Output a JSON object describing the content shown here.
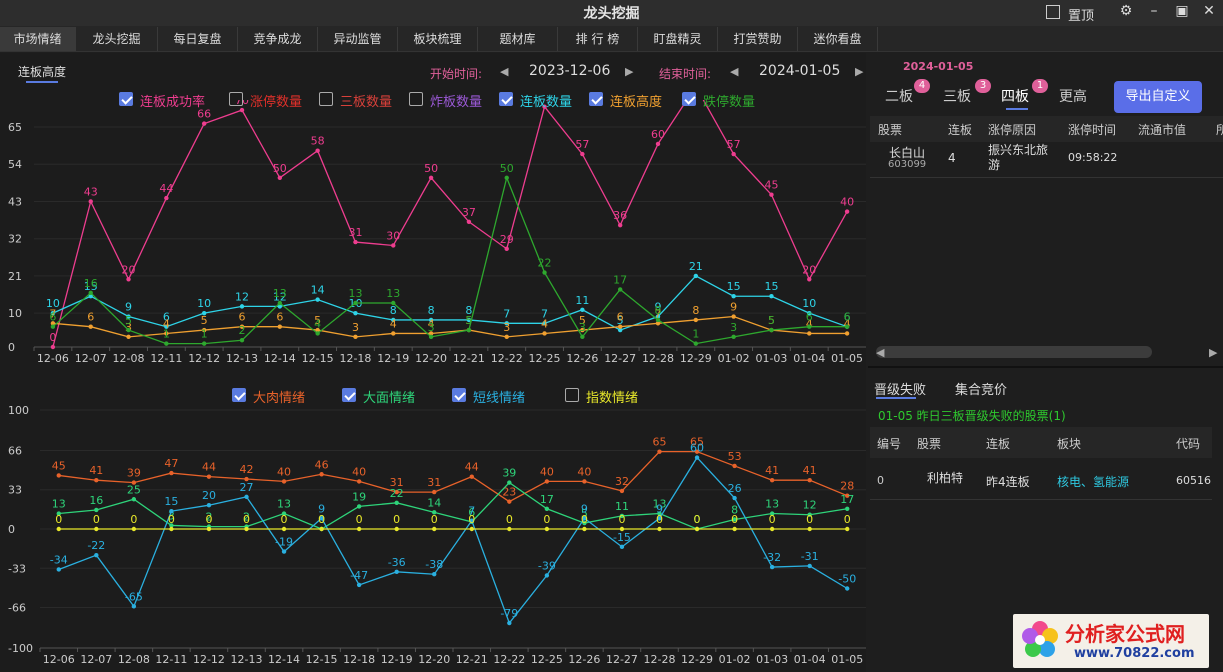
{
  "window": {
    "title": "龙头挖掘",
    "pin_label": "置顶",
    "icons": [
      "gear-icon",
      "minimize-icon",
      "maximize-icon",
      "close-icon"
    ]
  },
  "nav": {
    "tabs": [
      "市场情绪",
      "龙头挖掘",
      "每日复盘",
      "竞争成龙",
      "异动监管",
      "板块梳理",
      "题材库",
      "排 行 榜",
      "盯盘精灵",
      "打赏赞助",
      "迷你看盘"
    ]
  },
  "toolbar": {
    "subtab": "连板高度",
    "start_label": "开始时间:",
    "start_date": "2023-12-06",
    "end_label": "结束时间:",
    "end_date": "2024-01-05"
  },
  "chart_data": [
    {
      "type": "line",
      "legend": [
        "连板成功率",
        "涨停数量",
        "三板数量",
        "炸板数量",
        "连板数量",
        "连板高度",
        "跌停数量"
      ],
      "legend_checked": [
        true,
        false,
        false,
        false,
        true,
        true,
        true
      ],
      "colors": [
        "#ee3d8f",
        "#e0302a",
        "#d8403a",
        "#9b59d6",
        "#2ed4e8",
        "#f0a030",
        "#2ea82e"
      ],
      "categories": [
        "12-06",
        "12-07",
        "12-08",
        "12-11",
        "12-12",
        "12-13",
        "12-14",
        "12-15",
        "12-18",
        "12-19",
        "12-20",
        "12-21",
        "12-22",
        "12-25",
        "12-26",
        "12-27",
        "12-28",
        "12-29",
        "01-02",
        "01-03",
        "01-04",
        "01-05"
      ],
      "yticks": [
        0,
        10,
        21,
        32,
        43,
        54,
        65
      ],
      "ylim": [
        0,
        65
      ],
      "series": [
        {
          "name": "连板成功率",
          "values": [
            0,
            43,
            20,
            44,
            66,
            70,
            50,
            58,
            31,
            30,
            50,
            37,
            29,
            71,
            57,
            36,
            60,
            77,
            57,
            45,
            20,
            40
          ]
        },
        {
          "name": "连板数量",
          "values": [
            10,
            15,
            9,
            6,
            10,
            12,
            12,
            14,
            10,
            8,
            8,
            8,
            7,
            7,
            11,
            5,
            9,
            21,
            15,
            15,
            10,
            6
          ]
        },
        {
          "name": "连板高度",
          "values": [
            7,
            6,
            3,
            4,
            5,
            6,
            6,
            5,
            3,
            4,
            4,
            5,
            3,
            4,
            5,
            6,
            7,
            8,
            9,
            5,
            4,
            4
          ]
        },
        {
          "name": "跌停数量",
          "values": [
            6,
            16,
            5,
            1,
            1,
            2,
            13,
            4,
            13,
            13,
            3,
            5,
            50,
            22,
            3,
            17,
            8,
            1,
            3,
            5,
            6,
            6
          ]
        }
      ]
    },
    {
      "type": "line",
      "legend": [
        "大肉情绪",
        "大面情绪",
        "短线情绪",
        "指数情绪"
      ],
      "legend_checked": [
        true,
        true,
        true,
        false
      ],
      "colors": [
        "#e8622a",
        "#2ed47a",
        "#2ab0e0",
        "#e8e82a"
      ],
      "categories": [
        "12-06",
        "12-07",
        "12-08",
        "12-11",
        "12-12",
        "12-13",
        "12-14",
        "12-15",
        "12-18",
        "12-19",
        "12-20",
        "12-21",
        "12-22",
        "12-25",
        "12-26",
        "12-27",
        "12-28",
        "12-29",
        "01-02",
        "01-03",
        "01-04",
        "01-05"
      ],
      "yticks": [
        -100,
        -66,
        -33,
        0,
        33,
        66,
        100
      ],
      "ylim": [
        -100,
        100
      ],
      "series": [
        {
          "name": "大肉情绪",
          "values": [
            45,
            41,
            39,
            47,
            44,
            42,
            40,
            46,
            40,
            31,
            31,
            44,
            23,
            40,
            40,
            32,
            65,
            65,
            53,
            41,
            41,
            28
          ]
        },
        {
          "name": "大面情绪",
          "values": [
            13,
            16,
            25,
            3,
            2,
            2,
            13,
            0,
            19,
            22,
            14,
            6,
            39,
            17,
            5,
            11,
            13,
            0,
            8,
            13,
            12,
            17
          ]
        },
        {
          "name": "短线情绪",
          "values": [
            -34,
            -22,
            -65,
            15,
            20,
            27,
            -19,
            9,
            -47,
            -36,
            -38,
            7,
            -79,
            -39,
            9,
            -15,
            9,
            60,
            26,
            -32,
            -31,
            -50
          ]
        },
        {
          "name": "指数情绪",
          "values": [
            0,
            0,
            0,
            0,
            0,
            0,
            0,
            0,
            0,
            0,
            0,
            0,
            0,
            0,
            0,
            0,
            0,
            0,
            0,
            0,
            0,
            0
          ]
        }
      ]
    }
  ],
  "right": {
    "date": "2024-01-05",
    "board_tabs": [
      {
        "label": "二板",
        "count": "4"
      },
      {
        "label": "三板",
        "count": "3"
      },
      {
        "label": "四板",
        "count": "1"
      },
      {
        "label": "更高",
        "count": ""
      }
    ],
    "export_label": "导出自定义",
    "table_headers": [
      "股票",
      "连板",
      "涨停原因",
      "涨停时间",
      "流通市值",
      "所"
    ],
    "row": {
      "name": "长白山",
      "code": "603099",
      "boards": "4",
      "reason": "振兴东北旅游",
      "time": "09:58:22"
    },
    "lower_tabs": [
      "晋级失败",
      "集合竞价"
    ],
    "fail_title": "01-05 昨日三板晋级失败的股票(1)",
    "fail_headers": [
      "编号",
      "股票",
      "连板",
      "板块",
      "代码"
    ],
    "fail_row": {
      "no": "0",
      "name": "利柏特",
      "boards": "昨4连板",
      "sector": "核电、氢能源",
      "code": "60516"
    }
  },
  "watermark": {
    "text": "分析家公式网",
    "url": "www.70822.com"
  }
}
